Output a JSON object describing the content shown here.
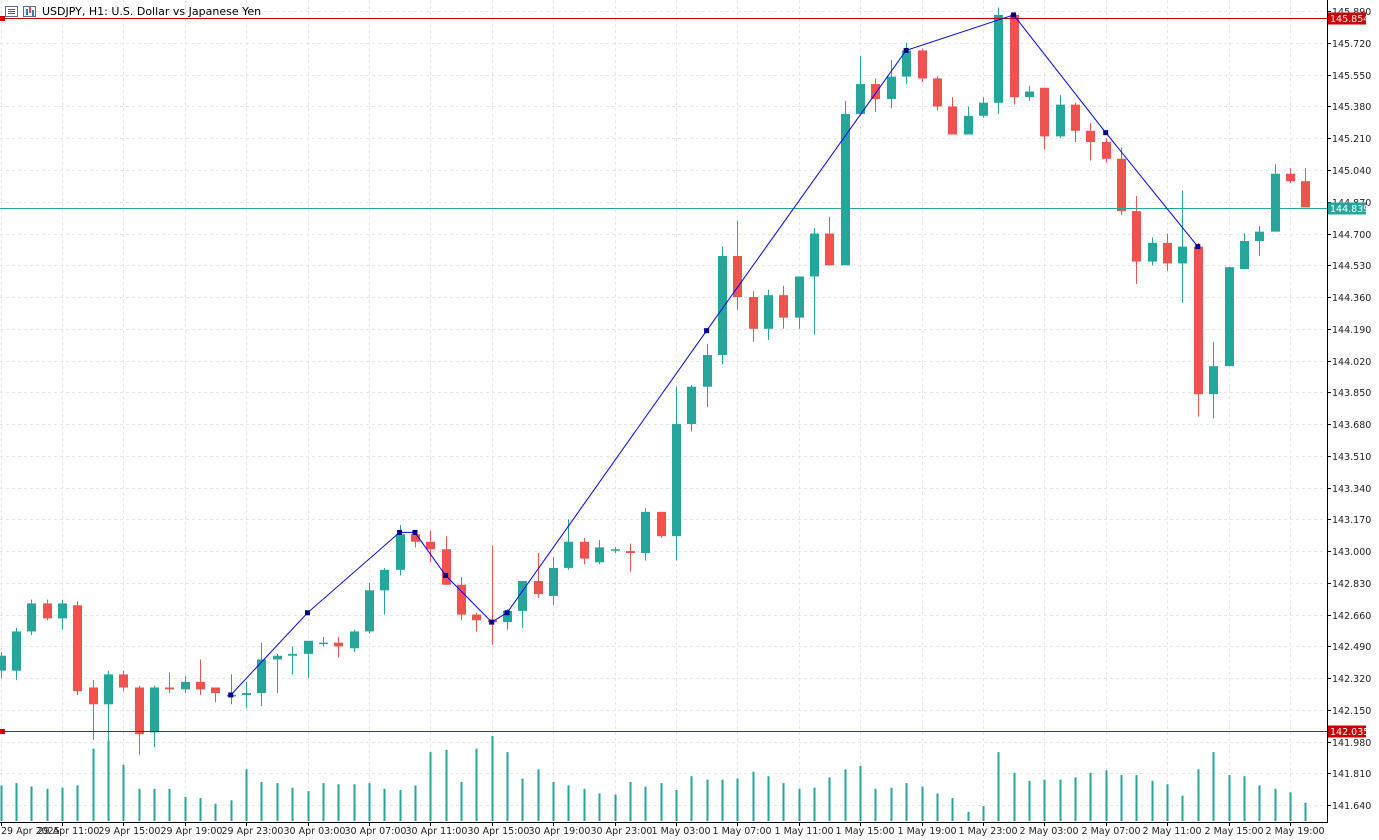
{
  "window": {
    "title": "USDJPY, H1:  U.S. Dollar vs Japanese Yen"
  },
  "colors": {
    "bull": "#26a69a",
    "bear": "#ef5350",
    "hline": "#cc0000",
    "bid_line": "#26a69a",
    "zigzag": "#0000ff",
    "grid": "#e6e6e6"
  },
  "chart_data": {
    "type": "candlestick",
    "symbol": "USDJPY",
    "timeframe": "H1",
    "ylim": [
      141.55,
      145.95
    ],
    "yticks": [
      145.89,
      145.72,
      145.55,
      145.38,
      145.21,
      145.04,
      144.87,
      144.7,
      144.53,
      144.36,
      144.19,
      144.02,
      143.85,
      143.68,
      143.51,
      143.34,
      143.17,
      143.0,
      142.83,
      142.66,
      142.49,
      142.32,
      142.15,
      141.98,
      141.81,
      141.64
    ],
    "ytick_labels": [
      "145.890",
      "145.720",
      "145.550",
      "145.380",
      "145.210",
      "145.040",
      "144.870",
      "144.700",
      "144.530",
      "144.360",
      "144.190",
      "144.020",
      "143.850",
      "143.680",
      "143.510",
      "143.340",
      "143.170",
      "143.000",
      "142.830",
      "142.660",
      "142.490",
      "142.320",
      "142.150",
      "141.980",
      "141.810",
      "141.640"
    ],
    "xtick_labels": [
      "29 Apr 2025",
      "29 Apr 11:00",
      "29 Apr 15:00",
      "29 Apr 19:00",
      "29 Apr 23:00",
      "30 Apr 03:00",
      "30 Apr 07:00",
      "30 Apr 11:00",
      "30 Apr 15:00",
      "30 Apr 19:00",
      "30 Apr 23:00",
      "1 May 03:00",
      "1 May 07:00",
      "1 May 11:00",
      "1 May 15:00",
      "1 May 19:00",
      "1 May 23:00",
      "2 May 03:00",
      "2 May 07:00",
      "2 May 11:00",
      "2 May 15:00",
      "2 May 19:00"
    ],
    "xtick_bars": [
      0,
      4,
      8,
      12,
      16,
      20,
      24,
      28,
      32,
      36,
      40,
      44,
      48,
      52,
      56,
      60,
      64,
      68,
      72,
      76,
      80,
      84
    ],
    "ohlc": [
      [
        142.36,
        142.46,
        142.32,
        142.44
      ],
      [
        142.36,
        142.59,
        142.31,
        142.57
      ],
      [
        142.57,
        142.74,
        142.55,
        142.72
      ],
      [
        142.72,
        142.74,
        142.63,
        142.64
      ],
      [
        142.64,
        142.74,
        142.58,
        142.72
      ],
      [
        142.71,
        142.73,
        142.23,
        142.25
      ],
      [
        142.27,
        142.31,
        141.99,
        142.18
      ],
      [
        142.18,
        142.36,
        141.94,
        142.34
      ],
      [
        142.34,
        142.36,
        142.25,
        142.27
      ],
      [
        142.27,
        142.28,
        141.91,
        142.02
      ],
      [
        142.03,
        142.28,
        141.95,
        142.27
      ],
      [
        142.27,
        142.35,
        142.24,
        142.26
      ],
      [
        142.26,
        142.33,
        142.24,
        142.3
      ],
      [
        142.3,
        142.42,
        142.23,
        142.26
      ],
      [
        142.27,
        142.27,
        142.19,
        142.24
      ],
      [
        142.23,
        142.34,
        142.18,
        142.23
      ],
      [
        142.23,
        142.3,
        142.16,
        142.24
      ],
      [
        142.24,
        142.51,
        142.17,
        142.42
      ],
      [
        142.42,
        142.45,
        142.24,
        142.44
      ],
      [
        142.44,
        142.49,
        142.34,
        142.45
      ],
      [
        142.45,
        142.51,
        142.32,
        142.52
      ],
      [
        142.51,
        142.54,
        142.49,
        142.51
      ],
      [
        142.51,
        142.54,
        142.43,
        142.49
      ],
      [
        142.48,
        142.58,
        142.46,
        142.57
      ],
      [
        142.57,
        142.83,
        142.56,
        142.79
      ],
      [
        142.79,
        142.91,
        142.66,
        142.9
      ],
      [
        142.9,
        143.14,
        142.87,
        143.09
      ],
      [
        143.09,
        143.11,
        143.02,
        143.05
      ],
      [
        143.05,
        143.11,
        142.94,
        143.01
      ],
      [
        143.01,
        143.08,
        142.82,
        142.82
      ],
      [
        142.82,
        142.86,
        142.63,
        142.66
      ],
      [
        142.66,
        142.67,
        142.57,
        142.63
      ],
      [
        142.63,
        143.03,
        142.5,
        142.62
      ],
      [
        142.62,
        142.69,
        142.58,
        142.68
      ],
      [
        142.68,
        142.84,
        142.59,
        142.84
      ],
      [
        142.84,
        142.99,
        142.75,
        142.77
      ],
      [
        142.76,
        142.97,
        142.71,
        142.91
      ],
      [
        142.91,
        143.17,
        142.9,
        143.05
      ],
      [
        143.05,
        143.07,
        142.93,
        142.96
      ],
      [
        142.94,
        143.06,
        142.93,
        143.02
      ],
      [
        143.01,
        143.02,
        142.99,
        143.01
      ],
      [
        143.0,
        143.04,
        142.89,
        142.99
      ],
      [
        142.99,
        143.23,
        142.95,
        143.21
      ],
      [
        143.21,
        143.21,
        143.07,
        143.08
      ],
      [
        143.08,
        143.88,
        142.95,
        143.68
      ],
      [
        143.68,
        143.89,
        143.64,
        143.88
      ],
      [
        143.88,
        144.11,
        143.77,
        144.05
      ],
      [
        144.05,
        144.63,
        144.0,
        144.58
      ],
      [
        144.58,
        144.77,
        144.29,
        144.36
      ],
      [
        144.36,
        144.39,
        144.12,
        144.19
      ],
      [
        144.19,
        144.4,
        144.13,
        144.37
      ],
      [
        144.37,
        144.42,
        144.19,
        144.25
      ],
      [
        144.25,
        144.46,
        144.19,
        144.47
      ],
      [
        144.47,
        144.73,
        144.16,
        144.7
      ],
      [
        144.7,
        144.79,
        144.53,
        144.53
      ],
      [
        144.53,
        145.41,
        144.54,
        145.34
      ],
      [
        145.34,
        145.65,
        145.33,
        145.5
      ],
      [
        145.5,
        145.53,
        145.35,
        145.42
      ],
      [
        145.42,
        145.63,
        145.37,
        145.54
      ],
      [
        145.54,
        145.72,
        145.5,
        145.68
      ],
      [
        145.68,
        145.69,
        145.51,
        145.53
      ],
      [
        145.53,
        145.54,
        145.36,
        145.38
      ],
      [
        145.38,
        145.43,
        145.23,
        145.23
      ],
      [
        145.23,
        145.38,
        145.23,
        145.33
      ],
      [
        145.33,
        145.43,
        145.32,
        145.4
      ],
      [
        145.4,
        145.91,
        145.34,
        145.87
      ],
      [
        145.87,
        145.88,
        145.39,
        145.43
      ],
      [
        145.43,
        145.49,
        145.41,
        145.46
      ],
      [
        145.48,
        145.48,
        145.15,
        145.22
      ],
      [
        145.22,
        145.44,
        145.21,
        145.39
      ],
      [
        145.39,
        145.4,
        145.19,
        145.25
      ],
      [
        145.25,
        145.29,
        145.09,
        145.19
      ],
      [
        145.19,
        145.21,
        145.08,
        145.1
      ],
      [
        145.1,
        145.16,
        144.8,
        144.82
      ],
      [
        144.82,
        144.9,
        144.43,
        144.55
      ],
      [
        144.55,
        144.68,
        144.53,
        144.65
      ],
      [
        144.65,
        144.7,
        144.5,
        144.54
      ],
      [
        144.54,
        144.93,
        144.33,
        144.63
      ],
      [
        144.63,
        144.65,
        143.72,
        143.84
      ],
      [
        143.84,
        144.12,
        143.71,
        143.99
      ],
      [
        143.99,
        144.52,
        143.99,
        144.52
      ],
      [
        144.51,
        144.7,
        144.54,
        144.66
      ],
      [
        144.66,
        144.74,
        144.58,
        144.71
      ],
      [
        144.71,
        145.07,
        144.71,
        145.02
      ],
      [
        145.02,
        145.05,
        144.97,
        144.98
      ],
      [
        144.98,
        145.05,
        144.84,
        144.84
      ]
    ],
    "volume": [
      31,
      33,
      30,
      28,
      29,
      31,
      63,
      70,
      49,
      28,
      28,
      28,
      21,
      20,
      15,
      18,
      45,
      34,
      33,
      29,
      26,
      33,
      32,
      32,
      33,
      28,
      27,
      31,
      60,
      62,
      34,
      63,
      74,
      60,
      37,
      45,
      34,
      31,
      28,
      24,
      23,
      34,
      30,
      33,
      27,
      39,
      36,
      36,
      37,
      43,
      39,
      33,
      28,
      29,
      38,
      45,
      48,
      28,
      29,
      33,
      30,
      24,
      20,
      8,
      13,
      60,
      42,
      35,
      36,
      36,
      38,
      42,
      44,
      40,
      40,
      35,
      32,
      22,
      45,
      60,
      40,
      39,
      31,
      28,
      25,
      16
    ],
    "horizontal_lines": [
      {
        "price": 145.854,
        "label": "145.854"
      },
      {
        "price": 142.035,
        "label": "142.035"
      }
    ],
    "bid_line": {
      "price": 144.839,
      "label": "144.839"
    },
    "zigzag": [
      {
        "bar": 15,
        "price": 142.23
      },
      {
        "bar": 20,
        "price": 142.67
      },
      {
        "bar": 26,
        "price": 143.1
      },
      {
        "bar": 27,
        "price": 143.1
      },
      {
        "bar": 29,
        "price": 142.87
      },
      {
        "bar": 32,
        "price": 142.62
      },
      {
        "bar": 33,
        "price": 142.67
      },
      {
        "bar": 46,
        "price": 144.18
      },
      {
        "bar": 59,
        "price": 145.68
      },
      {
        "bar": 66,
        "price": 145.87
      },
      {
        "bar": 72,
        "price": 145.24
      },
      {
        "bar": 78,
        "price": 144.63
      }
    ]
  }
}
